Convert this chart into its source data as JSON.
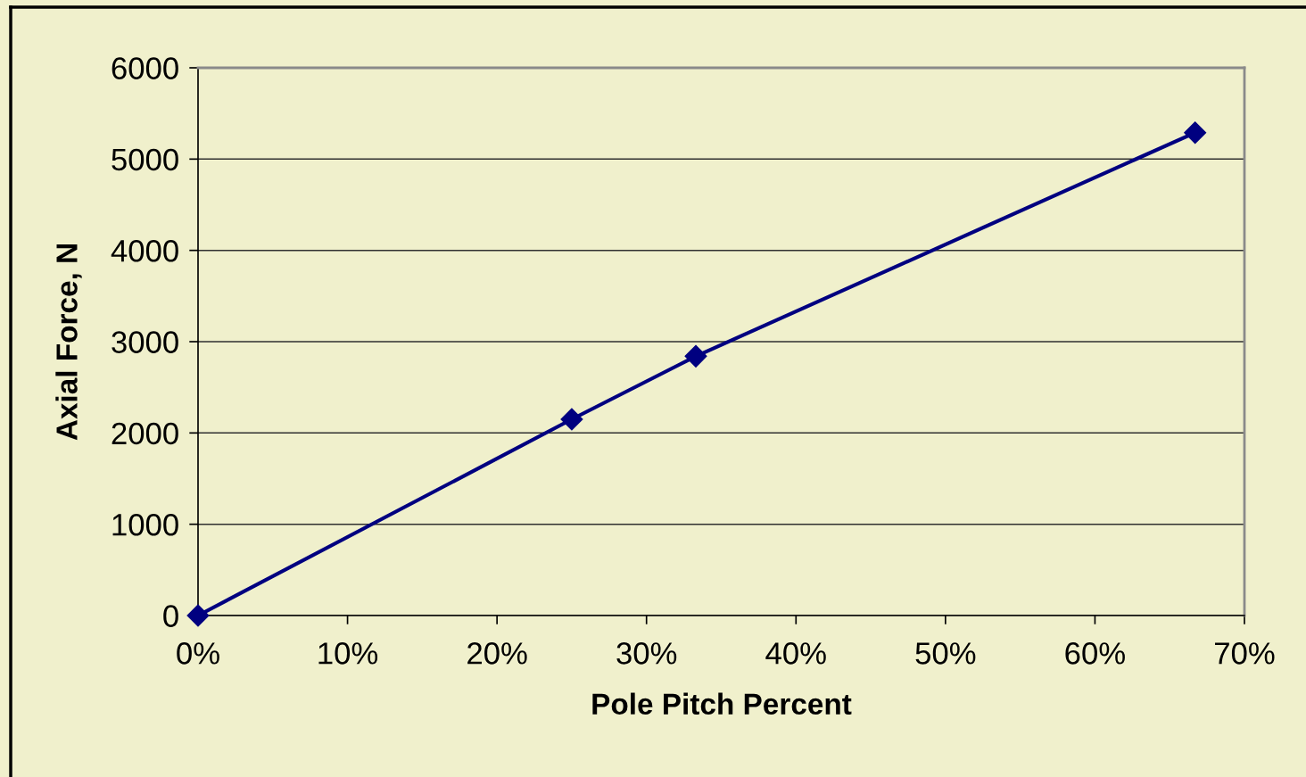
{
  "chart_data": {
    "type": "line",
    "xlabel": "Pole Pitch Percent",
    "ylabel": "Axial Force, N",
    "x": [
      0,
      25,
      33.3,
      66.7
    ],
    "series": [
      {
        "color": "#000080",
        "values": [
          0,
          2150,
          2840,
          5290
        ]
      }
    ],
    "xlim": [
      0,
      70
    ],
    "xticks": [
      {
        "value": 0,
        "label": "0%"
      },
      {
        "value": 10,
        "label": "10%"
      },
      {
        "value": 20,
        "label": "20%"
      },
      {
        "value": 30,
        "label": "30%"
      },
      {
        "value": 40,
        "label": "40%"
      },
      {
        "value": 50,
        "label": "50%"
      },
      {
        "value": 60,
        "label": "60%"
      },
      {
        "value": 70,
        "label": "70%"
      }
    ],
    "ylim": [
      0,
      6000
    ],
    "yticks": [
      0,
      1000,
      2000,
      3000,
      4000,
      5000,
      6000
    ],
    "grid": "y",
    "marker": "diamond",
    "line_style": "solid"
  }
}
